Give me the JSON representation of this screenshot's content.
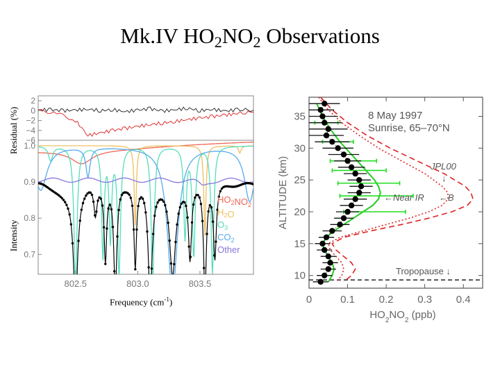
{
  "page": {
    "title": {
      "prefix": "Mk.IV HO",
      "sub1": "2",
      "mid": "NO",
      "sub2": "2",
      "suffix": " Observations"
    }
  },
  "chart_data": [
    {
      "type": "line",
      "name": "spectrum-fit",
      "xlabel": {
        "main": "Frequency (cm",
        "sup": "-1",
        "end": ")"
      },
      "residual_ylabel": "Residual (%)",
      "intensity_ylabel": "Intensity",
      "xlim": [
        802.2,
        803.93
      ],
      "x_ticks": [
        802.5,
        803.0,
        803.5
      ],
      "x_tick_labels": [
        "802.5",
        "803.0",
        "803.5"
      ],
      "residual_ylim": [
        -6,
        3
      ],
      "residual_ticks": [
        2,
        0,
        -2,
        -4,
        -6
      ],
      "residual_tick_labels": [
        "2",
        "0",
        "−2",
        "−4",
        "−6"
      ],
      "intensity_ylim": [
        0.645,
        1.015
      ],
      "intensity_ticks": [
        1.0,
        0.9,
        0.8,
        0.7
      ],
      "intensity_tick_labels": [
        "1.0",
        "0.9",
        "0.8",
        "0.7"
      ],
      "residual_series": [
        {
          "name": "residual-black",
          "color": "#333333",
          "x": [
            802.2,
            802.3,
            802.4,
            802.5,
            802.6,
            802.7,
            802.8,
            802.9,
            803.0,
            803.1,
            803.2,
            803.3,
            803.4,
            803.5,
            803.6,
            803.7,
            803.8,
            803.93
          ],
          "values": [
            0.1,
            0.2,
            0.0,
            0.1,
            0.3,
            0.0,
            0.2,
            -0.2,
            0.1,
            0.4,
            -0.1,
            0.2,
            0.5,
            0.0,
            0.3,
            -0.1,
            0.2,
            0.1
          ]
        },
        {
          "name": "residual-red",
          "color": "#dd3333",
          "x": [
            802.2,
            802.35,
            802.5,
            802.6,
            802.7,
            802.8,
            802.9,
            803.0,
            803.1,
            803.2,
            803.3,
            803.4,
            803.5,
            803.6,
            803.7,
            803.8,
            803.93
          ],
          "values": [
            0.0,
            -0.5,
            -2.0,
            -5.0,
            -4.5,
            -4.0,
            -3.6,
            -3.2,
            -2.8,
            -2.5,
            -2.2,
            -1.8,
            -1.5,
            -1.2,
            -0.9,
            -0.6,
            -0.3
          ]
        }
      ],
      "legend": [
        {
          "label_pre": "HO",
          "label_s1": "2",
          "label_mid": "NO",
          "label_s2": "2",
          "color": "#ee6655"
        },
        {
          "label_pre": "H",
          "label_s1": "2",
          "label_mid": "O",
          "label_s2": "",
          "color": "#eec060"
        },
        {
          "label_pre": "O",
          "label_s1": "3",
          "label_mid": "",
          "label_s2": "",
          "color": "#55ddbb"
        },
        {
          "label_pre": "CO",
          "label_s1": "2",
          "label_mid": "",
          "label_s2": "",
          "color": "#55aaee"
        },
        {
          "label_pre": "Other",
          "label_s1": "",
          "label_mid": "",
          "label_s2": "",
          "color": "#8877dd"
        }
      ]
    },
    {
      "type": "line",
      "name": "altitude-profile",
      "title_date": "8 May 1997",
      "title_sub": "Sunrise, 65–70°N",
      "ylabel": "ALTITUDE (km)",
      "xlabel": {
        "pre": "HO",
        "s1": "2",
        "mid": "NO",
        "s2": "2",
        "post": " (ppb)"
      },
      "xlim": [
        0,
        0.45
      ],
      "ylim": [
        8,
        38
      ],
      "x_ticks": [
        0,
        0.1,
        0.2,
        0.3,
        0.4
      ],
      "x_tick_labels": [
        "0",
        "0.1",
        "0.2",
        "0.3",
        "0.4"
      ],
      "y_ticks": [
        10,
        15,
        20,
        25,
        30,
        35
      ],
      "y_tick_labels": [
        "10",
        "15",
        "20",
        "25",
        "30",
        "35"
      ],
      "annotations": {
        "jpl": "JPL00",
        "jpl_arrow": "↓",
        "nearir": "←Near IR",
        "b": "←B",
        "tropopause": "Tropopause ↓"
      },
      "tropopause_altitude": 9.3,
      "observations": {
        "altitude": [
          37,
          36,
          35,
          34,
          33,
          32,
          31,
          30,
          29,
          28,
          27,
          26,
          25,
          24,
          23,
          22,
          21,
          20,
          19,
          18,
          17,
          16,
          15,
          14,
          13,
          12,
          11,
          10,
          9
        ],
        "value": [
          0.04,
          0.03,
          0.035,
          0.04,
          0.05,
          0.045,
          0.06,
          0.075,
          0.09,
          0.1,
          0.11,
          0.12,
          0.13,
          0.135,
          0.13,
          0.12,
          0.11,
          0.1,
          0.09,
          0.08,
          0.06,
          0.045,
          0.035,
          0.04,
          0.05,
          0.055,
          0.05,
          0.04,
          0.03
        ],
        "error": [
          0.04,
          0.035,
          0.04,
          0.045,
          0.05,
          0.045,
          0.045,
          0.04,
          0.04,
          0.035,
          0.035,
          0.03,
          0.03,
          0.03,
          0.03,
          0.03,
          0.03,
          0.03,
          0.025,
          0.025,
          0.025,
          0.02,
          0.02,
          0.02,
          0.02,
          0.02,
          0.02,
          0.02,
          0.02
        ]
      },
      "near_ir": {
        "altitude": [
          34,
          31,
          28,
          26.5,
          24.5,
          22.5,
          20
        ],
        "value": [
          0.045,
          0.075,
          0.115,
          0.13,
          0.155,
          0.175,
          0.17
        ],
        "error": [
          0.03,
          0.04,
          0.06,
          0.07,
          0.08,
          0.095,
          0.08
        ]
      },
      "model_curves": [
        {
          "name": "model-green",
          "color": "#22cc22",
          "dash": "",
          "altitude": [
            37,
            35,
            33,
            31,
            29,
            27,
            25,
            24,
            23,
            22,
            21,
            20,
            19,
            18,
            17,
            16,
            15,
            14,
            13,
            12,
            11,
            10,
            9
          ],
          "values": [
            0.02,
            0.035,
            0.055,
            0.08,
            0.11,
            0.14,
            0.17,
            0.18,
            0.185,
            0.18,
            0.165,
            0.14,
            0.115,
            0.09,
            0.065,
            0.045,
            0.035,
            0.04,
            0.05,
            0.06,
            0.065,
            0.06,
            0.05
          ]
        },
        {
          "name": "model-red-dashed",
          "color": "#dd2222",
          "dash": "8,5",
          "altitude": [
            38,
            36,
            34,
            32,
            30,
            28,
            26,
            24,
            23,
            22,
            21,
            20,
            19,
            18,
            17,
            16,
            15,
            14,
            13,
            12,
            11,
            10,
            9
          ],
          "values": [
            0.03,
            0.06,
            0.1,
            0.15,
            0.21,
            0.28,
            0.35,
            0.405,
            0.42,
            0.425,
            0.41,
            0.37,
            0.31,
            0.24,
            0.16,
            0.09,
            0.06,
            0.07,
            0.09,
            0.11,
            0.12,
            0.11,
            0.09
          ]
        },
        {
          "name": "model-red-dotted",
          "color": "#dd2222",
          "dash": "2,3",
          "altitude": [
            38,
            36,
            34,
            32,
            30,
            28,
            26,
            24,
            23,
            22,
            21,
            20,
            19,
            18,
            17,
            16,
            15,
            14,
            13,
            12,
            11,
            10,
            9
          ],
          "values": [
            0.025,
            0.05,
            0.085,
            0.13,
            0.18,
            0.24,
            0.3,
            0.345,
            0.36,
            0.36,
            0.345,
            0.31,
            0.26,
            0.2,
            0.14,
            0.08,
            0.05,
            0.055,
            0.07,
            0.085,
            0.09,
            0.085,
            0.07
          ]
        }
      ]
    }
  ]
}
